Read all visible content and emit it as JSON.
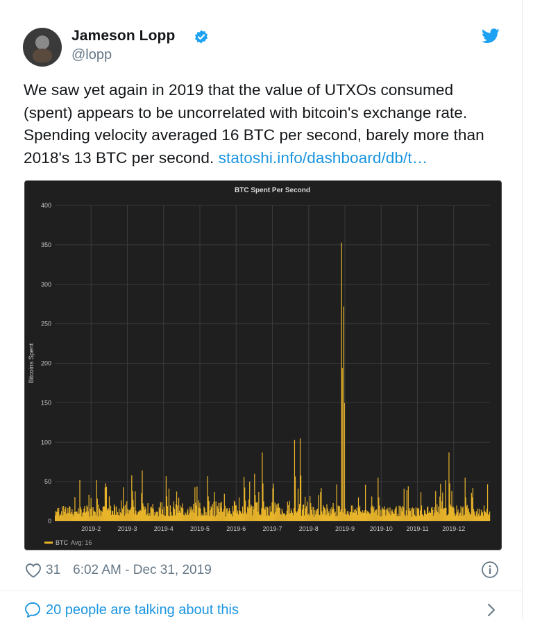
{
  "author": {
    "name": "Jameson Lopp",
    "handle": "@lopp"
  },
  "tweet": {
    "text": "We saw yet again in 2019 that the value of UTXOs consumed (spent) appears to be uncorrelated with bitcoin's exchange rate. Spending velocity averaged 16 BTC per second, barely more than 2018's 13 BTC per second. ",
    "link": "statoshi.info/dashboard/db/t…"
  },
  "meta": {
    "likes": "31",
    "timestamp": "6:02 AM - Dec 31, 2019",
    "talking": "20 people are talking about this"
  },
  "colors": {
    "series": "#e8b42a",
    "link": "#1b95e0",
    "chart_bg": "#1f1f20"
  },
  "chart_data": {
    "type": "bar",
    "title": "BTC Spent Per Second",
    "ylabel": "Bitcoins Spent",
    "xlabel": "",
    "ylim": [
      0,
      400
    ],
    "yticks": [
      0,
      50,
      100,
      150,
      200,
      250,
      300,
      350,
      400
    ],
    "xticks": [
      "2019-2",
      "2019-3",
      "2019-4",
      "2019-5",
      "2019-6",
      "2019-7",
      "2019-8",
      "2019-9",
      "2019-10",
      "2019-11",
      "2019-12"
    ],
    "legend": {
      "label": "BTC",
      "avg_label": "Avg: 16",
      "position": "bottom-left"
    },
    "grid": true,
    "series": [
      {
        "name": "BTC",
        "peaks": [
          {
            "month_pos": 1.15,
            "value": 52
          },
          {
            "month_pos": 1.4,
            "value": 48
          },
          {
            "month_pos": 2.1,
            "value": 58
          },
          {
            "month_pos": 3.05,
            "value": 57
          },
          {
            "month_pos": 4.2,
            "value": 57
          },
          {
            "month_pos": 5.2,
            "value": 56
          },
          {
            "month_pos": 5.5,
            "value": 60
          },
          {
            "month_pos": 5.7,
            "value": 87
          },
          {
            "month_pos": 6.6,
            "value": 103
          },
          {
            "month_pos": 6.75,
            "value": 105
          },
          {
            "month_pos": 7.9,
            "value": 353
          },
          {
            "month_pos": 7.95,
            "value": 272
          },
          {
            "month_pos": 8.9,
            "value": 55
          },
          {
            "month_pos": 10.85,
            "value": 87
          },
          {
            "month_pos": 11.3,
            "value": 55
          }
        ],
        "baseline": 16
      }
    ]
  }
}
